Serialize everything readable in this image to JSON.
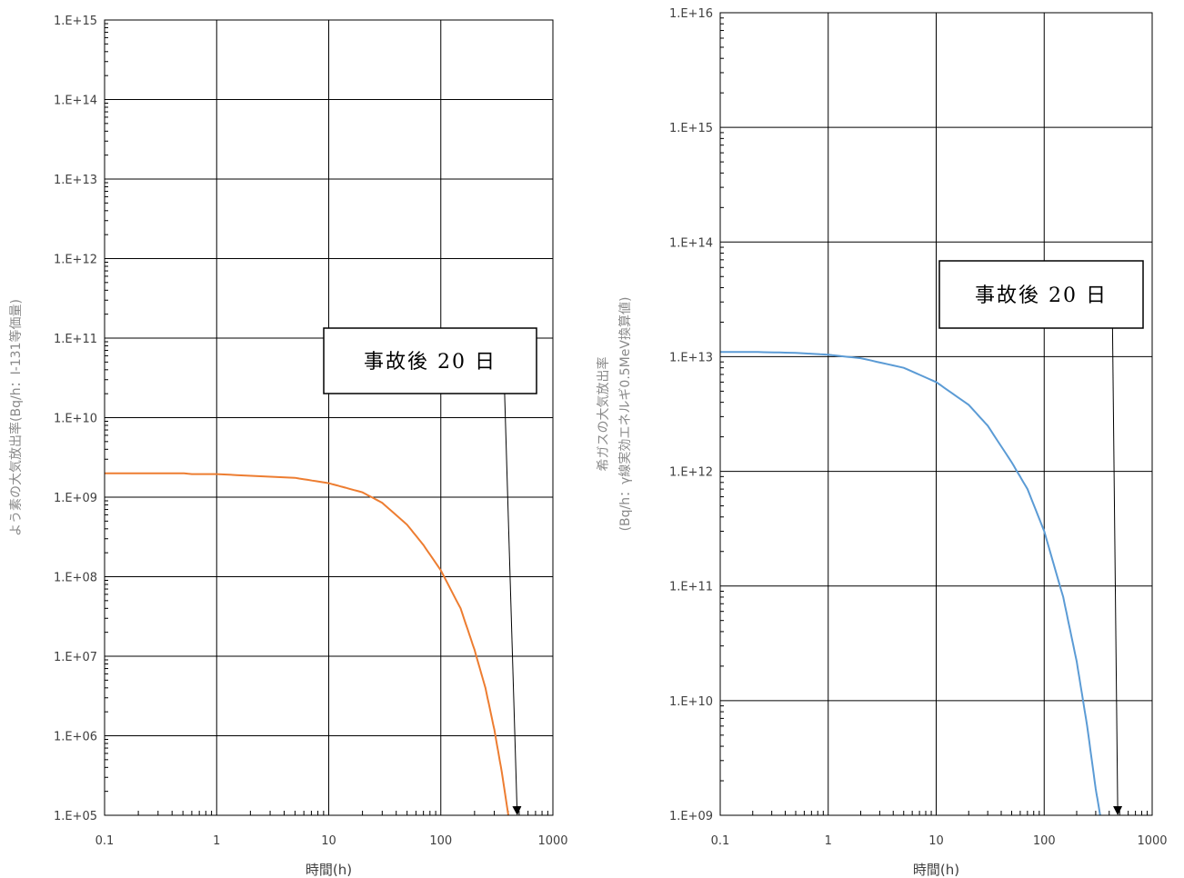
{
  "chart_data": [
    {
      "type": "line",
      "xlabel": "時間(h)",
      "ylabel": "よう素の大気放出率(Bq/h：I-131等価量)",
      "xscale": "log",
      "yscale": "log",
      "xlim": [
        0.1,
        1000
      ],
      "ylim": [
        100000,
        1000000000000000
      ],
      "x_ticks": [
        "0.1",
        "1",
        "10",
        "100",
        "1000"
      ],
      "y_ticks": [
        "1.E+05",
        "1.E+06",
        "1.E+07",
        "1.E+08",
        "1.E+09",
        "1.E+10",
        "1.E+11",
        "1.E+12",
        "1.E+13",
        "1.E+14",
        "1.E+15"
      ],
      "grid": true,
      "series": [
        {
          "color": "#ed7d31",
          "x": [
            0.1,
            0.5,
            0.6,
            1,
            5,
            10,
            20,
            30,
            50,
            70,
            100,
            150,
            200,
            250,
            300,
            350,
            400
          ],
          "y": [
            2000000000,
            2000000000,
            1950000000,
            1950000000,
            1750000000,
            1500000000,
            1150000000,
            850000000,
            450000000,
            250000000,
            120000000,
            40000000,
            12000000,
            4000000,
            1200000,
            350000,
            100000
          ]
        }
      ],
      "annotation": {
        "text": "事故後 20 日",
        "arrow_to_x": 480,
        "arrow_to_y": 100000
      }
    },
    {
      "type": "line",
      "xlabel": "時間(h)",
      "ylabel_lines": [
        "希ガスの大気放出率",
        "(Bq/h：γ線実効エネルギ0.5MeV換算値)"
      ],
      "xscale": "log",
      "yscale": "log",
      "xlim": [
        0.1,
        1000
      ],
      "ylim": [
        1000000000,
        10000000000000000
      ],
      "x_ticks": [
        "0.1",
        "1",
        "10",
        "100",
        "1000"
      ],
      "y_ticks": [
        "1.E+09",
        "1.E+10",
        "1.E+11",
        "1.E+12",
        "1.E+13",
        "1.E+14",
        "1.E+15",
        "1.E+16"
      ],
      "grid": true,
      "series": [
        {
          "color": "#5b9bd5",
          "x": [
            0.1,
            0.2,
            0.5,
            1,
            2,
            5,
            10,
            20,
            30,
            50,
            70,
            100,
            150,
            200,
            250,
            300,
            330
          ],
          "y": [
            11000000000000,
            11000000000000,
            10800000000000,
            10400000000000,
            9700000000000,
            8000000000000,
            6000000000000,
            3800000000000,
            2500000000000,
            1200000000000,
            700000000000,
            300000000000,
            80000000000,
            22000000000,
            6000000000,
            1700000000,
            1000000000
          ]
        }
      ],
      "annotation": {
        "text": "事故後 20 日",
        "arrow_to_x": 480,
        "arrow_to_y": 1000000000
      }
    }
  ]
}
